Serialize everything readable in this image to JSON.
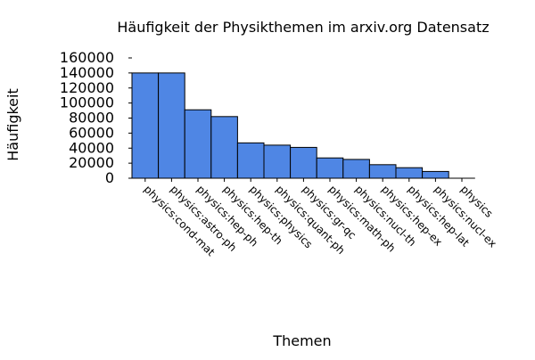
{
  "chart_data": {
    "type": "bar",
    "title": "Häufigkeit der Physikthemen im arxiv.org Datensatz",
    "xlabel": "Themen",
    "ylabel": "Häufigkeit",
    "categories": [
      "physics:cond-mat",
      "physics:astro-ph",
      "physics:hep-ph",
      "physics:hep-th",
      "physics:physics",
      "physics:quant-ph",
      "physics:gr-qc",
      "physics:math-ph",
      "physics:nucl-th",
      "physics:hep-ex",
      "physics:hep-lat",
      "physics:nucl-ex",
      "physics"
    ],
    "values": [
      140000,
      140000,
      91000,
      82000,
      47000,
      44000,
      41000,
      27000,
      25000,
      18000,
      14000,
      9000,
      0
    ],
    "ylim": [
      0,
      160000
    ],
    "yticks": [
      0,
      20000,
      40000,
      60000,
      80000,
      100000,
      120000,
      140000,
      160000
    ],
    "grid": false,
    "legend": "none",
    "bar_color": "#4f86e4",
    "bar_edge_color": "#000000"
  }
}
